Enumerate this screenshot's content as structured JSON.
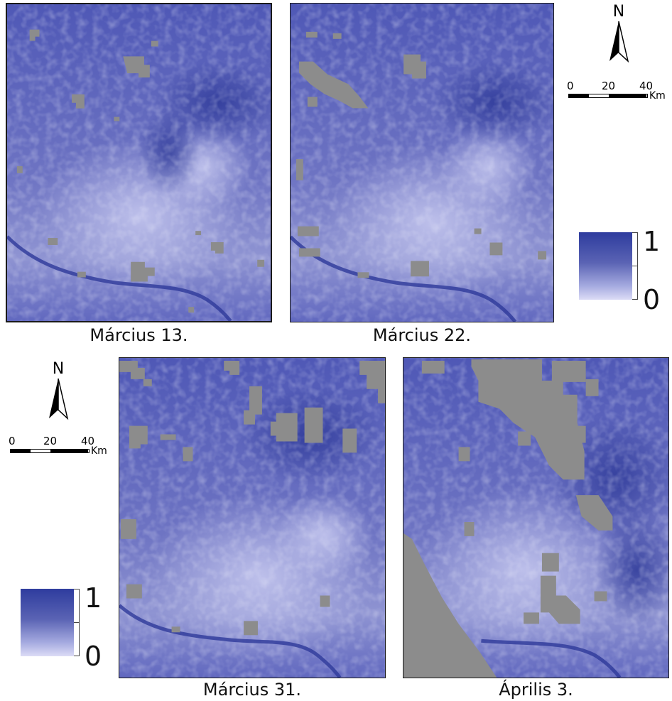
{
  "panels": [
    {
      "caption": "Március 13."
    },
    {
      "caption": "Március 22."
    },
    {
      "caption": "Március 31."
    },
    {
      "caption": "Április 3."
    }
  ],
  "north_arrow": {
    "label": "N",
    "icon": "north-arrow-icon"
  },
  "scale_bar": {
    "labels": [
      "0",
      "20",
      "40"
    ],
    "unit": "Km"
  },
  "legend": {
    "max": "1",
    "min": "0"
  },
  "colors": {
    "water_index_high": "#2e3c9e",
    "water_index_low": "#dcdcf6",
    "cloud_mask": "#8c8c8c"
  }
}
